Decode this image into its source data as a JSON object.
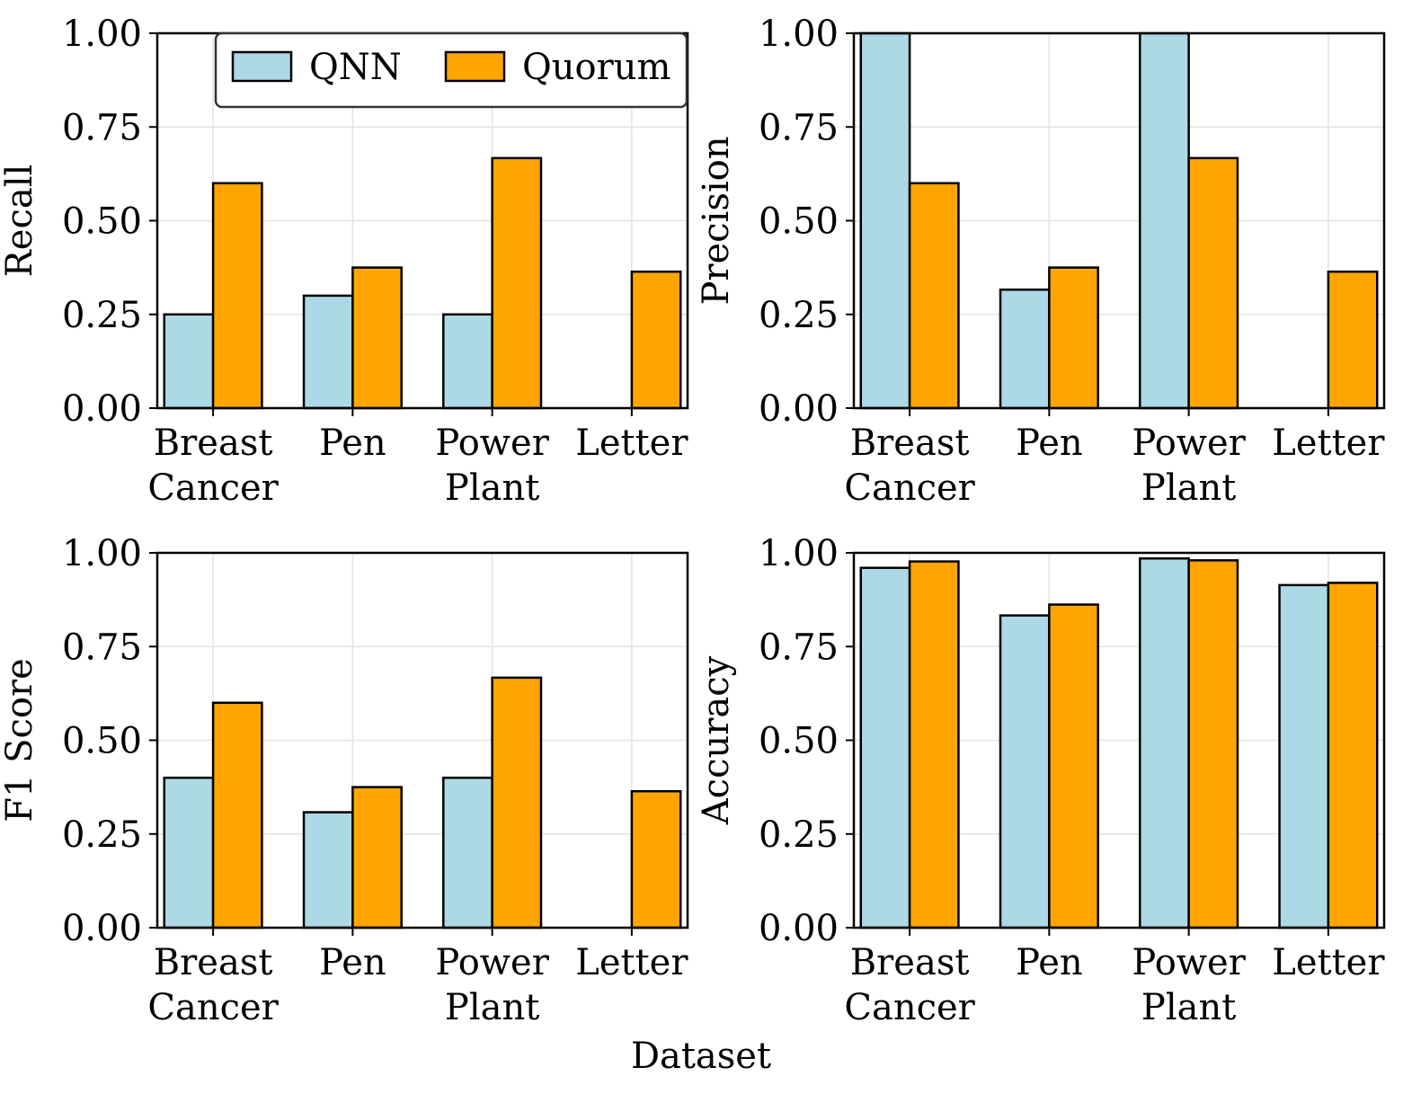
{
  "figure": {
    "xlabel": "Dataset"
  },
  "legend": {
    "items": [
      {
        "name": "QNN",
        "color": "#add8e6"
      },
      {
        "name": "Quorum",
        "color": "#ffa500"
      }
    ]
  },
  "chart_data": [
    {
      "type": "bar",
      "title": "",
      "ylabel": "Recall",
      "xlabel": "",
      "ylim": [
        0,
        1
      ],
      "yticks": [
        "0.00",
        "0.25",
        "0.50",
        "0.75",
        "1.00"
      ],
      "categories": [
        [
          "Breast",
          "Cancer"
        ],
        [
          "Pen"
        ],
        [
          "Power",
          "Plant"
        ],
        [
          "Letter"
        ]
      ],
      "series": [
        {
          "name": "QNN",
          "values": [
            0.25,
            0.3,
            0.25,
            0.0
          ]
        },
        {
          "name": "Quorum",
          "values": [
            0.6,
            0.375,
            0.667,
            0.364
          ]
        }
      ]
    },
    {
      "type": "bar",
      "title": "",
      "ylabel": "Precision",
      "xlabel": "",
      "ylim": [
        0,
        1
      ],
      "yticks": [
        "0.00",
        "0.25",
        "0.50",
        "0.75",
        "1.00"
      ],
      "categories": [
        [
          "Breast",
          "Cancer"
        ],
        [
          "Pen"
        ],
        [
          "Power",
          "Plant"
        ],
        [
          "Letter"
        ]
      ],
      "series": [
        {
          "name": "QNN",
          "values": [
            1.0,
            0.316,
            1.0,
            0.0
          ]
        },
        {
          "name": "Quorum",
          "values": [
            0.6,
            0.375,
            0.667,
            0.364
          ]
        }
      ]
    },
    {
      "type": "bar",
      "title": "",
      "ylabel": "F1 Score",
      "xlabel": "",
      "ylim": [
        0,
        1
      ],
      "yticks": [
        "0.00",
        "0.25",
        "0.50",
        "0.75",
        "1.00"
      ],
      "categories": [
        [
          "Breast",
          "Cancer"
        ],
        [
          "Pen"
        ],
        [
          "Power",
          "Plant"
        ],
        [
          "Letter"
        ]
      ],
      "series": [
        {
          "name": "QNN",
          "values": [
            0.4,
            0.308,
            0.4,
            0.0
          ]
        },
        {
          "name": "Quorum",
          "values": [
            0.6,
            0.375,
            0.667,
            0.364
          ]
        }
      ]
    },
    {
      "type": "bar",
      "title": "",
      "ylabel": "Accuracy",
      "xlabel": "",
      "ylim": [
        0,
        1
      ],
      "yticks": [
        "0.00",
        "0.25",
        "0.50",
        "0.75",
        "1.00"
      ],
      "categories": [
        [
          "Breast",
          "Cancer"
        ],
        [
          "Pen"
        ],
        [
          "Power",
          "Plant"
        ],
        [
          "Letter"
        ]
      ],
      "series": [
        {
          "name": "QNN",
          "values": [
            0.96,
            0.833,
            0.985,
            0.914
          ]
        },
        {
          "name": "Quorum",
          "values": [
            0.977,
            0.862,
            0.98,
            0.92
          ]
        }
      ]
    }
  ]
}
